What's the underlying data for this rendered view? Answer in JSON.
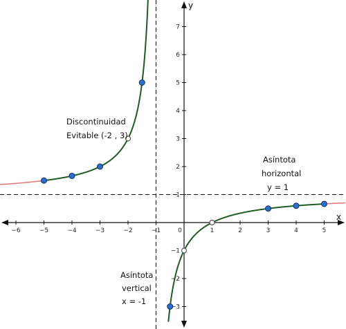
{
  "chart_data": {
    "type": "line",
    "title": "",
    "xlabel": "x",
    "ylabel": "y",
    "xlim": [
      -6.4,
      5.8
    ],
    "ylim": [
      -3.7,
      7.8
    ],
    "x_ticks": [
      "−6",
      "−5",
      "−4",
      "−3",
      "−2",
      "−1",
      "0",
      "1",
      "2",
      "3",
      "4",
      "5"
    ],
    "y_ticks": [
      "−3",
      "−2",
      "−1",
      "1",
      "2",
      "3",
      "4",
      "5",
      "6",
      "7"
    ],
    "function": "f(x) = (x − 1) / (x + 1), x ≠ −2",
    "curve_color": "#1b5e20",
    "extension_color": "#e57373",
    "point_color": "#2a6fd1",
    "points": [
      {
        "x": -5,
        "y": 1.5
      },
      {
        "x": -4,
        "y": 1.667
      },
      {
        "x": -3,
        "y": 2
      },
      {
        "x": -1.5,
        "y": 5
      },
      {
        "x": 3,
        "y": 0.5
      },
      {
        "x": 4,
        "y": 0.6
      },
      {
        "x": 5,
        "y": 0.667
      },
      {
        "x": -0.5,
        "y": -3
      }
    ],
    "hollow_points": [
      {
        "x": -2,
        "y": 3
      },
      {
        "x": 1,
        "y": 0
      },
      {
        "x": 0,
        "y": -1
      }
    ],
    "asymptotes": {
      "vertical_x": -1,
      "horizontal_y": 1
    },
    "annotations": {
      "discontinuity": [
        "Discontinuidad",
        "Evitable (-2 , 3)"
      ],
      "horizontal": [
        "Asíntota",
        "horizontal",
        "y = 1"
      ],
      "vertical": [
        "Asíntota",
        "vertical",
        "x = -1"
      ]
    }
  }
}
